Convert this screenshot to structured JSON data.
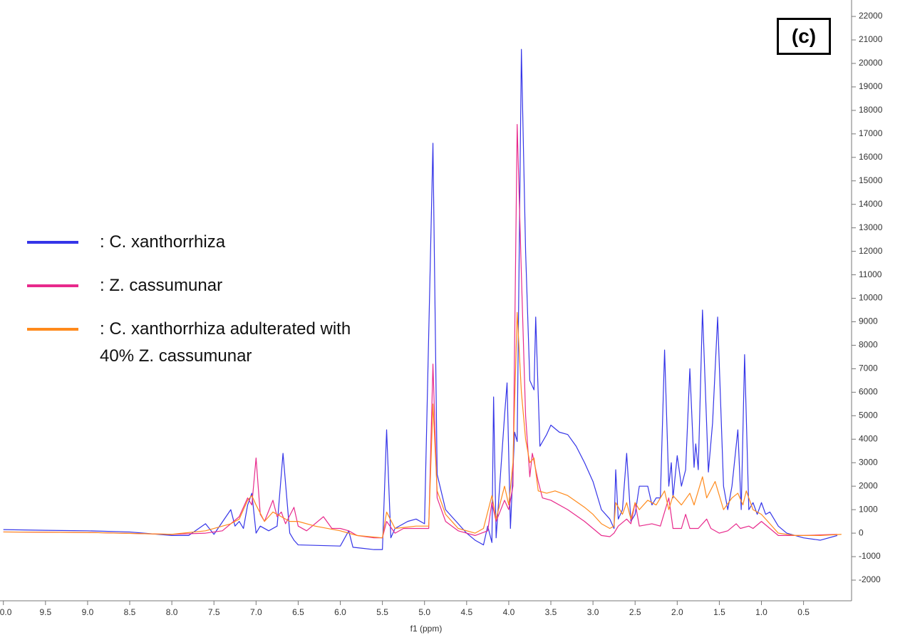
{
  "chart_data": {
    "type": "line",
    "annotation": "(c)",
    "x_label": "f1 (ppm)",
    "xlim": [
      10.04,
      -0.07
    ],
    "ylim": [
      -2880,
      22700
    ],
    "xticks": [
      {
        "value": 10,
        "label": "10.0"
      },
      9.5,
      {
        "value": 9,
        "label": "9.0"
      },
      8.5,
      {
        "value": 8,
        "label": "8.0"
      },
      7.5,
      {
        "value": 7,
        "label": "7.0"
      },
      6.5,
      {
        "value": 6,
        "label": "6.0"
      },
      5.5,
      {
        "value": 5,
        "label": "5.0"
      },
      4.5,
      {
        "value": 4,
        "label": "4.0"
      },
      3.5,
      {
        "value": 3,
        "label": "3.0"
      },
      2.5,
      {
        "value": 2,
        "label": "2.0"
      },
      1.5,
      {
        "value": 1,
        "label": "1.0"
      },
      0.5
    ],
    "yticks": [
      -2000,
      -1000,
      0,
      1000,
      2000,
      3000,
      4000,
      5000,
      6000,
      7000,
      8000,
      9000,
      10000,
      11000,
      12000,
      13000,
      14000,
      15000,
      16000,
      17000,
      18000,
      19000,
      20000,
      21000,
      22000
    ],
    "series": [
      {
        "name": ": C. xanthorrhiza",
        "color": "#3535e8",
        "x": [
          10.0,
          9.5,
          9.0,
          8.5,
          8.0,
          7.8,
          7.6,
          7.5,
          7.3,
          7.25,
          7.2,
          7.15,
          7.1,
          7.05,
          7.0,
          6.95,
          6.85,
          6.75,
          6.68,
          6.6,
          6.55,
          6.5,
          6.0,
          5.9,
          5.85,
          5.6,
          5.5,
          5.45,
          5.4,
          5.35,
          5.2,
          5.1,
          5.0,
          4.9,
          4.85,
          4.75,
          4.6,
          4.5,
          4.4,
          4.3,
          4.25,
          4.2,
          4.18,
          4.15,
          4.05,
          4.02,
          3.98,
          3.93,
          3.9,
          3.85,
          3.8,
          3.75,
          3.7,
          3.68,
          3.63,
          3.55,
          3.5,
          3.4,
          3.3,
          3.2,
          3.1,
          3.0,
          2.9,
          2.8,
          2.75,
          2.73,
          2.7,
          2.65,
          2.6,
          2.55,
          2.5,
          2.45,
          2.35,
          2.3,
          2.25,
          2.2,
          2.15,
          2.1,
          2.07,
          2.05,
          2.0,
          1.95,
          1.9,
          1.85,
          1.8,
          1.78,
          1.75,
          1.7,
          1.63,
          1.58,
          1.52,
          1.45,
          1.4,
          1.35,
          1.28,
          1.24,
          1.2,
          1.15,
          1.1,
          1.05,
          1.0,
          0.95,
          0.9,
          0.8,
          0.7,
          0.5,
          0.3,
          0.1
        ],
        "values": [
          150,
          120,
          100,
          50,
          -100,
          -100,
          400,
          -50,
          1000,
          300,
          500,
          200,
          1200,
          1700,
          0,
          300,
          100,
          300,
          3400,
          0,
          -300,
          -500,
          -550,
          100,
          -600,
          -700,
          -700,
          4400,
          -200,
          200,
          500,
          600,
          400,
          16600,
          2500,
          1000,
          400,
          0,
          -300,
          -500,
          300,
          -400,
          5800,
          -200,
          5000,
          6400,
          200,
          4300,
          3900,
          20600,
          12000,
          6500,
          6100,
          9200,
          3700,
          4200,
          4600,
          4300,
          4200,
          3700,
          3000,
          2200,
          1000,
          600,
          200,
          2700,
          600,
          1000,
          3400,
          500,
          800,
          2000,
          2000,
          1200,
          1500,
          1500,
          7800,
          2000,
          3000,
          1500,
          3300,
          2000,
          2700,
          7000,
          2800,
          3800,
          2700,
          9500,
          2600,
          4700,
          9200,
          2000,
          1000,
          2000,
          4400,
          1000,
          7600,
          1000,
          1300,
          800,
          1300,
          800,
          900,
          300,
          0,
          -200,
          -300,
          -100
        ]
      },
      {
        "name": ": Z. cassumunar",
        "color": "#e82a8c",
        "x": [
          10.0,
          9.0,
          8.0,
          7.6,
          7.4,
          7.2,
          7.1,
          7.05,
          7.0,
          6.95,
          6.9,
          6.8,
          6.75,
          6.7,
          6.65,
          6.55,
          6.5,
          6.4,
          6.2,
          6.1,
          6.0,
          5.9,
          5.8,
          5.6,
          5.5,
          5.45,
          5.35,
          5.25,
          5.1,
          4.95,
          4.9,
          4.85,
          4.75,
          4.6,
          4.4,
          4.25,
          4.2,
          4.15,
          4.05,
          4.0,
          3.95,
          3.9,
          3.85,
          3.8,
          3.75,
          3.72,
          3.65,
          3.6,
          3.5,
          3.3,
          3.1,
          3.0,
          2.9,
          2.8,
          2.75,
          2.7,
          2.6,
          2.55,
          2.5,
          2.45,
          2.3,
          2.2,
          2.1,
          2.05,
          1.95,
          1.9,
          1.85,
          1.75,
          1.65,
          1.6,
          1.5,
          1.4,
          1.3,
          1.25,
          1.15,
          1.1,
          1.0,
          0.9,
          0.8,
          0.5,
          0.1
        ],
        "values": [
          50,
          30,
          -50,
          0,
          100,
          700,
          1500,
          1200,
          3200,
          800,
          500,
          1400,
          700,
          900,
          400,
          1100,
          300,
          100,
          700,
          200,
          200,
          100,
          -100,
          -200,
          -200,
          500,
          0,
          200,
          200,
          200,
          7200,
          1500,
          500,
          100,
          -100,
          100,
          1300,
          500,
          1400,
          1000,
          2000,
          17400,
          11000,
          5000,
          2400,
          3400,
          2200,
          1500,
          1400,
          1000,
          500,
          200,
          -100,
          -150,
          0,
          300,
          600,
          400,
          1300,
          300,
          400,
          300,
          1500,
          200,
          200,
          800,
          200,
          200,
          600,
          200,
          0,
          100,
          400,
          200,
          300,
          200,
          500,
          200,
          -100,
          -100,
          -50
        ]
      },
      {
        "name": ": C. xanthorrhiza adulterated with 40% Z. cassumunar",
        "color": "#ff8a1c",
        "x": [
          10.0,
          9.0,
          8.0,
          7.6,
          7.3,
          7.2,
          7.1,
          7.05,
          7.0,
          6.9,
          6.8,
          6.7,
          6.6,
          6.5,
          6.3,
          6.0,
          5.8,
          5.5,
          5.45,
          5.35,
          5.1,
          4.95,
          4.9,
          4.85,
          4.75,
          4.6,
          4.4,
          4.3,
          4.2,
          4.15,
          4.05,
          4.0,
          3.95,
          3.9,
          3.85,
          3.8,
          3.75,
          3.7,
          3.65,
          3.55,
          3.45,
          3.3,
          3.1,
          3.0,
          2.9,
          2.8,
          2.75,
          2.73,
          2.65,
          2.6,
          2.55,
          2.5,
          2.45,
          2.35,
          2.25,
          2.15,
          2.1,
          2.05,
          1.95,
          1.85,
          1.8,
          1.7,
          1.65,
          1.55,
          1.45,
          1.35,
          1.28,
          1.22,
          1.18,
          1.1,
          1.0,
          0.9,
          0.8,
          0.6,
          0.3,
          0.05
        ],
        "values": [
          50,
          30,
          -50,
          100,
          400,
          600,
          1400,
          1600,
          1200,
          500,
          900,
          700,
          500,
          500,
          300,
          100,
          -100,
          -200,
          900,
          200,
          300,
          300,
          5500,
          1800,
          800,
          200,
          0,
          200,
          1600,
          600,
          2000,
          1200,
          3000,
          9400,
          6000,
          4000,
          3000,
          3200,
          1800,
          1700,
          1800,
          1600,
          1100,
          800,
          400,
          200,
          300,
          1300,
          800,
          1300,
          600,
          1300,
          1000,
          1400,
          1200,
          1800,
          1000,
          1600,
          1200,
          1700,
          1200,
          2400,
          1500,
          2200,
          1000,
          1500,
          1700,
          1200,
          1800,
          1000,
          800,
          400,
          0,
          -100,
          -100,
          -50
        ]
      }
    ]
  }
}
